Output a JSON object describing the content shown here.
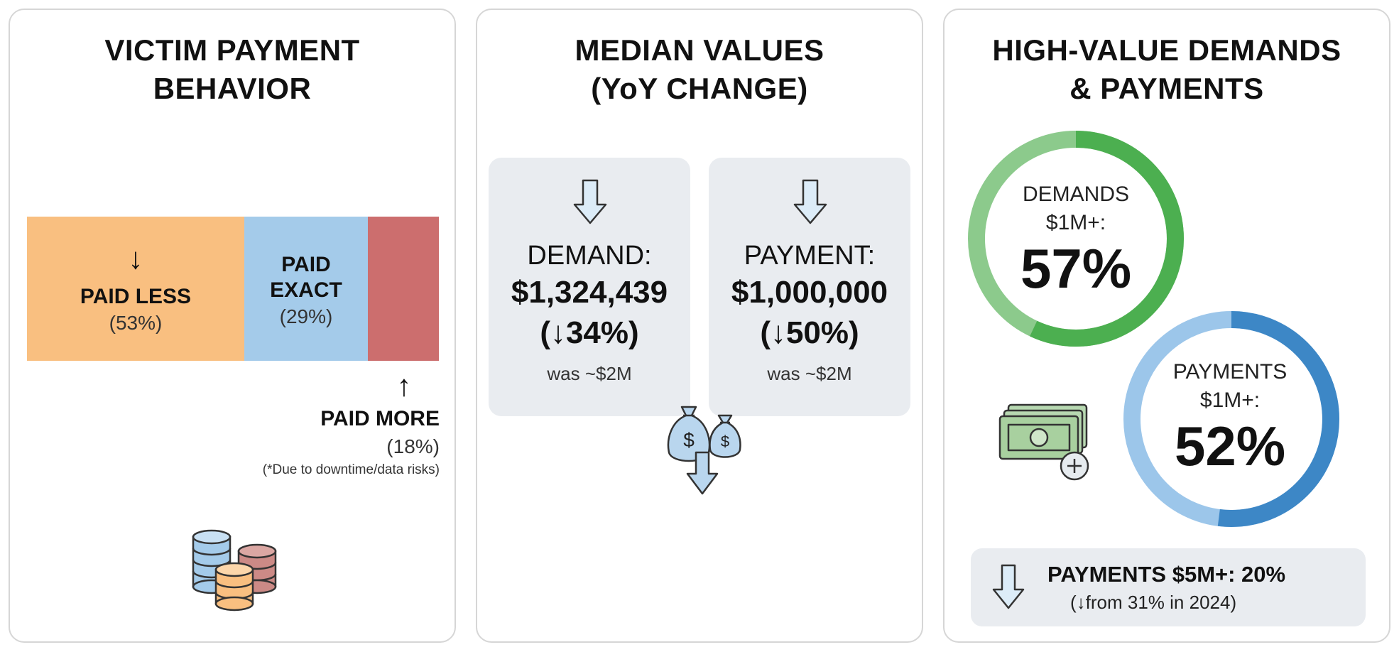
{
  "panels": {
    "payment_behavior": {
      "title_line1": "VICTIM PAYMENT",
      "title_line2": "BEHAVIOR",
      "paid_less_arrow": "↓",
      "paid_less_label": "PAID LESS",
      "paid_less_pct": "(53%)",
      "paid_exact_label_line1": "PAID",
      "paid_exact_label_line2": "EXACT",
      "paid_exact_pct": "(29%)",
      "paid_more_arrow": "↑",
      "paid_more_label": "PAID MORE",
      "paid_more_pct": "(18%)",
      "paid_more_note": "(*Due to downtime/data risks)",
      "icon": "coin-stacks-icon"
    },
    "median_values": {
      "title_line1": "MEDIAN VALUES",
      "title_line2": "(YoY CHANGE)",
      "demand": {
        "label": "DEMAND:",
        "value": "$1,324,439",
        "change": "(↓34%)",
        "previous": "was ~$2M"
      },
      "payment": {
        "label": "PAYMENT:",
        "value": "$1,000,000",
        "change": "(↓50%)",
        "previous": "was ~$2M"
      },
      "icon": "money-bags-down-icon"
    },
    "high_value": {
      "title_line1": "HIGH-VALUE DEMANDS",
      "title_line2": "& PAYMENTS",
      "demands_label_line1": "DEMANDS",
      "demands_label_line2": "$1M+:",
      "demands_pct": "57%",
      "payments_label_line1": "PAYMENTS",
      "payments_label_line2": "$1M+:",
      "payments_pct": "52%",
      "note_main": "PAYMENTS $5M+: 20%",
      "note_sub": "(↓from 31% in 2024)",
      "icon": "cash-plus-icon"
    }
  },
  "chart_data": [
    {
      "type": "bar",
      "title": "VICTIM PAYMENT BEHAVIOR",
      "categories": [
        "PAID LESS",
        "PAID EXACT",
        "PAID MORE"
      ],
      "values": [
        53,
        29,
        18
      ],
      "unit": "%",
      "stacked": true,
      "colors": [
        "#f9bf80",
        "#a4cbea",
        "#cc6e6e"
      ]
    },
    {
      "type": "table",
      "title": "MEDIAN VALUES (YoY CHANGE)",
      "rows": [
        {
          "metric": "DEMAND",
          "value": 1324439,
          "change_pct": -34,
          "previous": "~$2M"
        },
        {
          "metric": "PAYMENT",
          "value": 1000000,
          "change_pct": -50,
          "previous": "~$2M"
        }
      ]
    },
    {
      "type": "pie",
      "title": "HIGH-VALUE DEMANDS & PAYMENTS",
      "series": [
        {
          "name": "DEMANDS $1M+",
          "value": 57,
          "color": "#4caf50"
        },
        {
          "name": "PAYMENTS $1M+",
          "value": 52,
          "color": "#3d87c6"
        }
      ],
      "extra": {
        "PAYMENTS $5M+": 20,
        "2024": 31
      }
    }
  ],
  "colors": {
    "paid_less": "#f9bf80",
    "paid_exact": "#a4cbea",
    "paid_more": "#cc6e6e",
    "card_bg": "#e9ecf0",
    "green_ring": "#4caf50",
    "blue_ring": "#3d87c6"
  }
}
